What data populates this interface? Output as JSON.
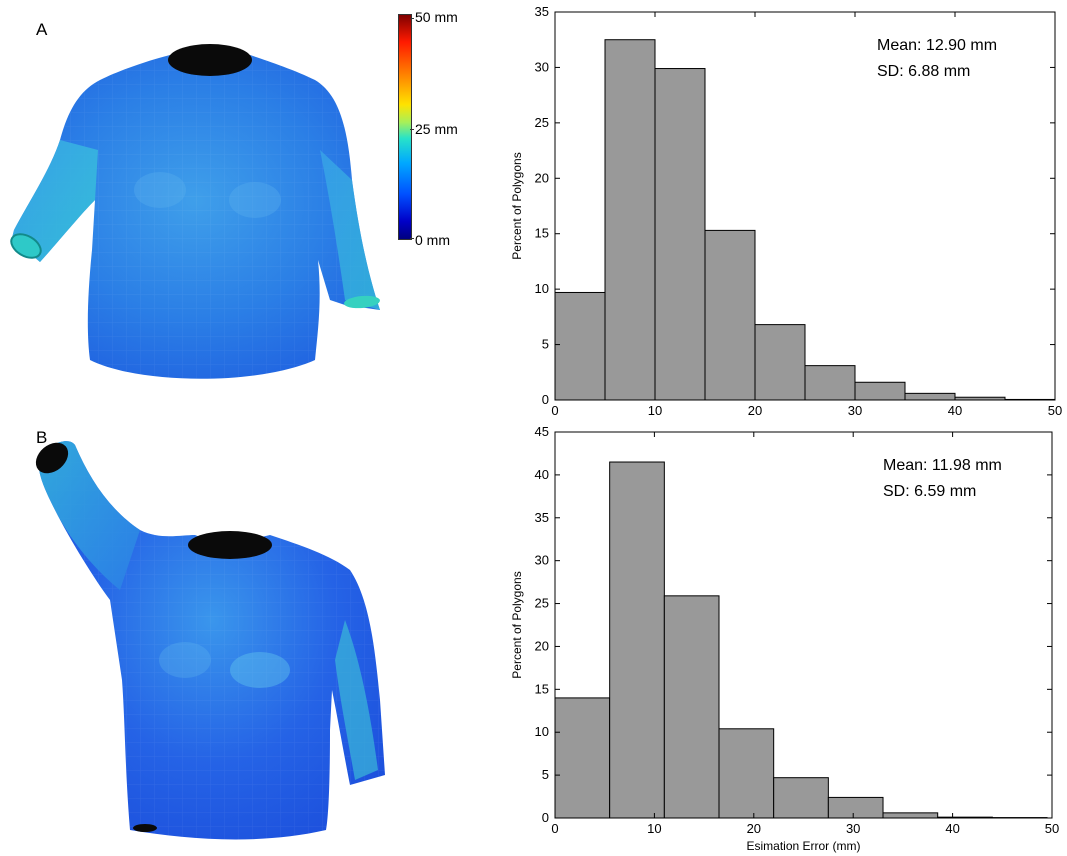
{
  "panels": {
    "a_label": "A",
    "b_label": "B"
  },
  "colorbar": {
    "max_label": "50 mm",
    "mid_label": "25 mm",
    "min_label": "0 mm"
  },
  "chart_data": [
    {
      "type": "bar",
      "panel": "A",
      "bin_edges": [
        0,
        5,
        10,
        15,
        20,
        25,
        30,
        35,
        40,
        45,
        50
      ],
      "values": [
        9.7,
        32.5,
        29.9,
        15.3,
        6.8,
        3.1,
        1.6,
        0.6,
        0.25,
        0.05
      ],
      "xlim": [
        0,
        50
      ],
      "ylim": [
        0,
        35
      ],
      "xticks": [
        0,
        10,
        20,
        30,
        40,
        50
      ],
      "yticks": [
        0,
        5,
        10,
        15,
        20,
        25,
        30,
        35
      ],
      "xlabel": "",
      "ylabel": "Percent of Polygons",
      "annotations": [
        "Mean: 12.90 mm",
        "SD: 6.88 mm"
      ],
      "bar_color": "#999999"
    },
    {
      "type": "bar",
      "panel": "B",
      "bin_edges": [
        0,
        5.5,
        11,
        16.5,
        22,
        27.5,
        33,
        38.5,
        44,
        49.5
      ],
      "values": [
        14.0,
        41.5,
        25.9,
        10.4,
        4.7,
        2.4,
        0.6,
        0.1,
        0.05
      ],
      "xlim": [
        0,
        50
      ],
      "ylim": [
        0,
        45
      ],
      "xticks": [
        0,
        10,
        20,
        30,
        40,
        50
      ],
      "yticks": [
        0,
        5,
        10,
        15,
        20,
        25,
        30,
        35,
        40,
        45
      ],
      "xlabel": "Esimation Error (mm)",
      "ylabel": "Percent of Polygons",
      "annotations": [
        "Mean: 11.98 mm",
        "SD: 6.59 mm"
      ],
      "bar_color": "#999999"
    }
  ]
}
